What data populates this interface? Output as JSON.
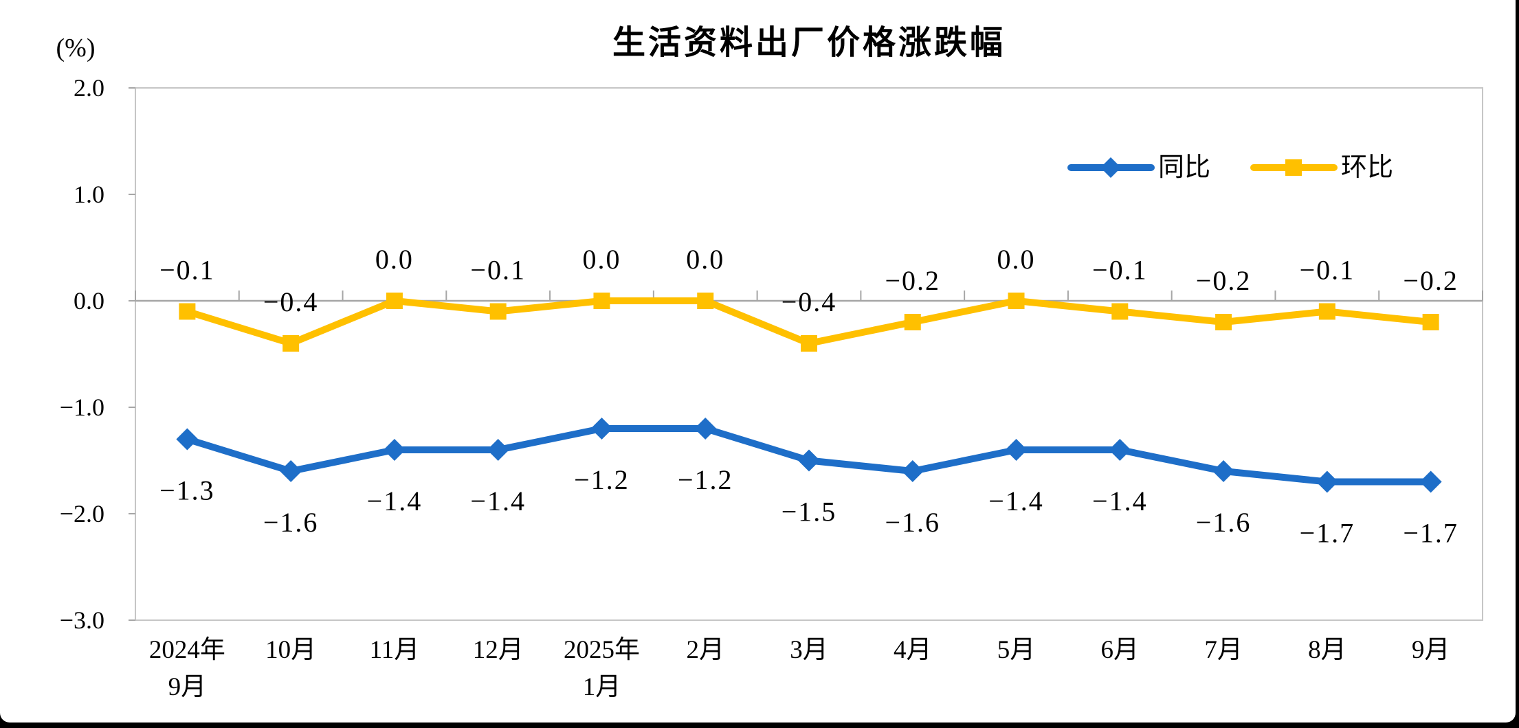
{
  "page": {
    "background_color": "#FFFFFF",
    "frame_color": "#000000"
  },
  "chart_data": {
    "type": "line",
    "title": "生活资料出厂价格涨跌幅",
    "unit_label": "(%)",
    "xlabel": "",
    "ylabel": "(%)",
    "ylim": [
      -3.0,
      2.0
    ],
    "grid": "zero-axis-only",
    "legend_position": "top-right-inside",
    "axis_color": "#A6A6A6",
    "border_color": "#C6C6C6",
    "categories": [
      "2024年\n9月",
      "10月",
      "11月",
      "12月",
      "2025年\n1月",
      "2月",
      "3月",
      "4月",
      "5月",
      "6月",
      "7月",
      "8月",
      "9月"
    ],
    "y_axis_ticks": [
      "2.0",
      "1.0",
      "0.0",
      "-1.0",
      "-2.0",
      "-3.0"
    ],
    "y_axis_tick_values": [
      2.0,
      1.0,
      0.0,
      -1.0,
      -2.0,
      -3.0
    ],
    "series": [
      {
        "name": "同比",
        "color": "#1E6EC8",
        "marker": "diamond",
        "label_position": "below",
        "values": [
          -1.3,
          -1.6,
          -1.4,
          -1.4,
          -1.2,
          -1.2,
          -1.5,
          -1.6,
          -1.4,
          -1.4,
          -1.6,
          -1.7,
          -1.7
        ],
        "labels": [
          "-1.3",
          "-1.6",
          "-1.4",
          "-1.4",
          "-1.2",
          "-1.2",
          "-1.5",
          "-1.6",
          "-1.4",
          "-1.4",
          "-1.6",
          "-1.7",
          "-1.7"
        ]
      },
      {
        "name": "环比",
        "color": "#FFC000",
        "marker": "square",
        "label_position": "above",
        "values": [
          -0.1,
          -0.4,
          0.0,
          -0.1,
          0.0,
          0.0,
          -0.4,
          -0.2,
          0.0,
          -0.1,
          -0.2,
          -0.1,
          -0.2
        ],
        "labels": [
          "-0.1",
          "-0.4",
          "0.0",
          "-0.1",
          "0.0",
          "0.0",
          "-0.4",
          "-0.2",
          "0.0",
          "-0.1",
          "-0.2",
          "-0.1",
          "-0.2"
        ]
      }
    ]
  }
}
